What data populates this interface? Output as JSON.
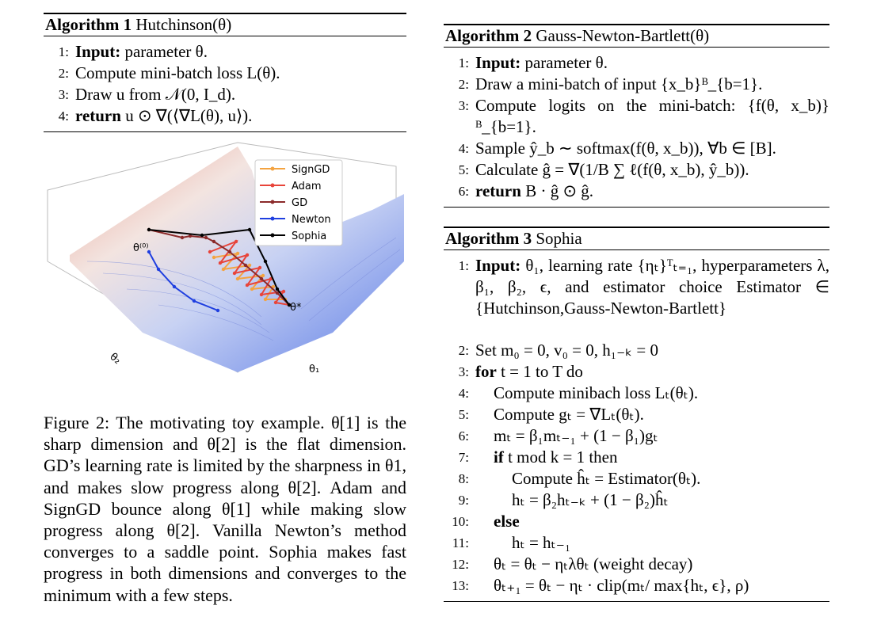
{
  "algorithms": [
    {
      "label": "Algorithm 1",
      "name": "Hutchinson(θ)",
      "lines": [
        {
          "number": "1:",
          "keyword": "Input:",
          "text": "parameter θ."
        },
        {
          "number": "2:",
          "text": "Compute mini-batch loss L(θ)."
        },
        {
          "number": "3:",
          "text": "Draw u from 𝒩(0, I_d)."
        },
        {
          "number": "4:",
          "keyword": "return",
          "text": "u ⊙ ∇(⟨∇L(θ), u⟩)."
        }
      ]
    },
    {
      "label": "Algorithm 2",
      "name": "Gauss-Newton-Bartlett(θ)",
      "lines": [
        {
          "number": "1:",
          "keyword": "Input:",
          "text": "parameter θ."
        },
        {
          "number": "2:",
          "text": "Draw a mini-batch of input {x_b}ᴮ_{b=1}."
        },
        {
          "number": "3:",
          "text": "Compute logits on the mini-batch: {f(θ, x_b)}ᴮ_{b=1}."
        },
        {
          "number": "4:",
          "text": "Sample ŷ_b ∼ softmax(f(θ, x_b)), ∀b ∈ [B]."
        },
        {
          "number": "5:",
          "text": "Calculate ĝ = ∇(1/B ∑ ℓ(f(θ, x_b), ŷ_b))."
        },
        {
          "number": "6:",
          "keyword": "return",
          "text": "B · ĝ ⊙ ĝ."
        }
      ]
    },
    {
      "label": "Algorithm 3",
      "name": "Sophia",
      "lines": [
        {
          "number": "1:",
          "keyword": "Input:",
          "text": "θ₁, learning rate {ηₜ}ᵀₜ₌₁, hyperparameters λ, β₁, β₂, ϵ, and estimator choice Estimator ∈ {Hutchinson,Gauss-Newton-Bartlett}"
        },
        {
          "number": "2:",
          "text": "Set m₀ = 0, v₀ = 0, h₁₋ₖ = 0"
        },
        {
          "number": "3:",
          "keyword": "for",
          "text": "t = 1 to T do"
        },
        {
          "number": "4:",
          "text": "Compute minibach loss Lₜ(θₜ)."
        },
        {
          "number": "5:",
          "text": "Compute gₜ = ∇Lₜ(θₜ)."
        },
        {
          "number": "6:",
          "text": "mₜ = β₁mₜ₋₁ + (1 − β₁)gₜ"
        },
        {
          "number": "7:",
          "keyword": "if",
          "text": "t mod k = 1 then"
        },
        {
          "number": "8:",
          "text": "Compute ĥₜ = Estimator(θₜ)."
        },
        {
          "number": "9:",
          "text": "hₜ = β₂hₜ₋ₖ + (1 − β₂)ĥₜ"
        },
        {
          "number": "10:",
          "keyword": "else"
        },
        {
          "number": "11:",
          "text": "hₜ = hₜ₋₁"
        },
        {
          "number": "12:",
          "text": "θₜ = θₜ − ηₜλθₜ (weight decay)"
        },
        {
          "number": "13:",
          "text": "θₜ₊₁ = θₜ − ηₜ · clip(mₜ/ max{hₜ, ϵ}, ρ)"
        }
      ]
    }
  ],
  "figure": {
    "legend": [
      {
        "name": "SignGD",
        "color": "#f4a340"
      },
      {
        "name": "Adam",
        "color": "#e8443a"
      },
      {
        "name": "GD",
        "color": "#8b2a2a"
      },
      {
        "name": "Newton",
        "color": "#1f3fe0"
      },
      {
        "name": "Sophia",
        "color": "#000000"
      }
    ],
    "labels": {
      "start": "θ⁽⁰⁾",
      "optimum": "θ*",
      "axis_1": "θ₁",
      "axis_2": "θ₂"
    },
    "caption": "Figure 2: The motivating toy example. θ[1] is the sharp dimension and θ[2] is the flat dimension. GD’s learning rate is limited by the sharpness in θ1, and makes slow progress along θ[2]. Adam and SignGD bounce along θ[1] while making slow progress along θ[2]. Vanilla Newton’s method converges to a saddle point. Sophia makes fast progress in both dimensions and converges to the minimum with a few steps."
  }
}
